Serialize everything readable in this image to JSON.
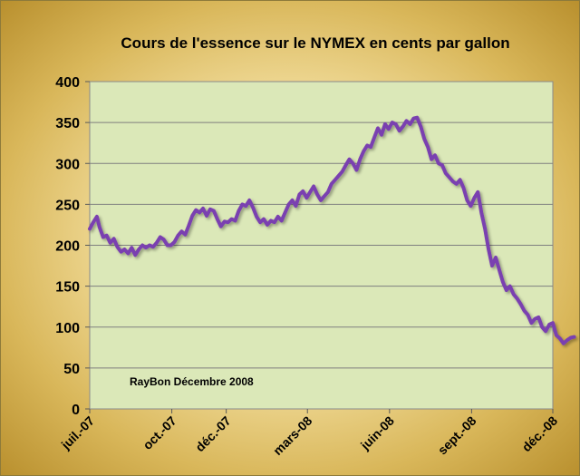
{
  "chart_data": {
    "type": "line",
    "title": "Cours de l'essence sur le NYMEX en cents par gallon",
    "annotation": "RayBon Décembre 2008",
    "xlabel": "",
    "ylabel": "",
    "ylim": [
      0,
      400
    ],
    "yticks": [
      0,
      50,
      100,
      150,
      200,
      250,
      300,
      350,
      400
    ],
    "xticks": [
      {
        "label": "juil.-07",
        "date": "2007-07-01"
      },
      {
        "label": "oct.-07",
        "date": "2007-10-01"
      },
      {
        "label": "déc.-07",
        "date": "2007-12-01"
      },
      {
        "label": "mars-08",
        "date": "2008-03-01"
      },
      {
        "label": "juin-08",
        "date": "2008-06-01"
      },
      {
        "label": "sept.-08",
        "date": "2008-09-01"
      },
      {
        "label": "déc.-08",
        "date": "2008-12-01"
      }
    ],
    "xlim": [
      "2007-07-01",
      "2008-12-01"
    ],
    "grid": true,
    "legend": "none",
    "colors": {
      "line": "#7a3fb0",
      "plot_bg": "#dbe8b8",
      "grid": "#7f7f7f",
      "axis": "#595959"
    },
    "series": [
      {
        "points": [
          [
            "2007-07-01",
            220
          ],
          [
            "2007-07-05",
            228
          ],
          [
            "2007-07-09",
            235
          ],
          [
            "2007-07-12",
            222
          ],
          [
            "2007-07-16",
            210
          ],
          [
            "2007-07-20",
            212
          ],
          [
            "2007-07-24",
            203
          ],
          [
            "2007-07-28",
            208
          ],
          [
            "2007-08-01",
            198
          ],
          [
            "2007-08-05",
            192
          ],
          [
            "2007-08-09",
            195
          ],
          [
            "2007-08-13",
            190
          ],
          [
            "2007-08-17",
            197
          ],
          [
            "2007-08-21",
            188
          ],
          [
            "2007-08-25",
            195
          ],
          [
            "2007-08-29",
            200
          ],
          [
            "2007-09-02",
            197
          ],
          [
            "2007-09-06",
            200
          ],
          [
            "2007-09-10",
            198
          ],
          [
            "2007-09-14",
            203
          ],
          [
            "2007-09-18",
            210
          ],
          [
            "2007-09-22",
            207
          ],
          [
            "2007-09-26",
            200
          ],
          [
            "2007-09-30",
            200
          ],
          [
            "2007-10-04",
            204
          ],
          [
            "2007-10-08",
            212
          ],
          [
            "2007-10-12",
            217
          ],
          [
            "2007-10-16",
            213
          ],
          [
            "2007-10-20",
            224
          ],
          [
            "2007-10-24",
            236
          ],
          [
            "2007-10-28",
            243
          ],
          [
            "2007-11-01",
            240
          ],
          [
            "2007-11-05",
            245
          ],
          [
            "2007-11-09",
            236
          ],
          [
            "2007-11-13",
            244
          ],
          [
            "2007-11-17",
            242
          ],
          [
            "2007-11-21",
            232
          ],
          [
            "2007-11-25",
            223
          ],
          [
            "2007-11-29",
            229
          ],
          [
            "2007-12-03",
            228
          ],
          [
            "2007-12-07",
            232
          ],
          [
            "2007-12-11",
            230
          ],
          [
            "2007-12-15",
            242
          ],
          [
            "2007-12-19",
            250
          ],
          [
            "2007-12-23",
            248
          ],
          [
            "2007-12-27",
            255
          ],
          [
            "2007-12-31",
            246
          ],
          [
            "2008-01-04",
            235
          ],
          [
            "2008-01-08",
            228
          ],
          [
            "2008-01-12",
            232
          ],
          [
            "2008-01-16",
            225
          ],
          [
            "2008-01-20",
            230
          ],
          [
            "2008-01-24",
            228
          ],
          [
            "2008-01-28",
            235
          ],
          [
            "2008-02-01",
            230
          ],
          [
            "2008-02-05",
            240
          ],
          [
            "2008-02-09",
            250
          ],
          [
            "2008-02-13",
            255
          ],
          [
            "2008-02-17",
            248
          ],
          [
            "2008-02-21",
            262
          ],
          [
            "2008-02-25",
            266
          ],
          [
            "2008-02-29",
            258
          ],
          [
            "2008-03-04",
            265
          ],
          [
            "2008-03-08",
            272
          ],
          [
            "2008-03-12",
            262
          ],
          [
            "2008-03-16",
            255
          ],
          [
            "2008-03-20",
            260
          ],
          [
            "2008-03-24",
            265
          ],
          [
            "2008-03-28",
            275
          ],
          [
            "2008-04-01",
            280
          ],
          [
            "2008-04-05",
            285
          ],
          [
            "2008-04-09",
            290
          ],
          [
            "2008-04-13",
            298
          ],
          [
            "2008-04-17",
            305
          ],
          [
            "2008-04-21",
            300
          ],
          [
            "2008-04-25",
            292
          ],
          [
            "2008-04-29",
            305
          ],
          [
            "2008-05-03",
            315
          ],
          [
            "2008-05-07",
            322
          ],
          [
            "2008-05-11",
            320
          ],
          [
            "2008-05-15",
            332
          ],
          [
            "2008-05-19",
            343
          ],
          [
            "2008-05-23",
            335
          ],
          [
            "2008-05-27",
            348
          ],
          [
            "2008-05-31",
            342
          ],
          [
            "2008-06-04",
            350
          ],
          [
            "2008-06-08",
            348
          ],
          [
            "2008-06-12",
            340
          ],
          [
            "2008-06-16",
            345
          ],
          [
            "2008-06-20",
            352
          ],
          [
            "2008-06-24",
            348
          ],
          [
            "2008-06-28",
            355
          ],
          [
            "2008-07-02",
            356
          ],
          [
            "2008-07-06",
            345
          ],
          [
            "2008-07-10",
            330
          ],
          [
            "2008-07-14",
            320
          ],
          [
            "2008-07-18",
            305
          ],
          [
            "2008-07-22",
            310
          ],
          [
            "2008-07-26",
            300
          ],
          [
            "2008-07-30",
            298
          ],
          [
            "2008-08-03",
            288
          ],
          [
            "2008-08-07",
            283
          ],
          [
            "2008-08-11",
            278
          ],
          [
            "2008-08-15",
            275
          ],
          [
            "2008-08-19",
            280
          ],
          [
            "2008-08-23",
            270
          ],
          [
            "2008-08-27",
            255
          ],
          [
            "2008-08-31",
            248
          ],
          [
            "2008-09-04",
            258
          ],
          [
            "2008-09-08",
            265
          ],
          [
            "2008-09-12",
            240
          ],
          [
            "2008-09-16",
            220
          ],
          [
            "2008-09-20",
            195
          ],
          [
            "2008-09-24",
            175
          ],
          [
            "2008-09-28",
            185
          ],
          [
            "2008-10-02",
            170
          ],
          [
            "2008-10-06",
            155
          ],
          [
            "2008-10-10",
            145
          ],
          [
            "2008-10-14",
            150
          ],
          [
            "2008-10-18",
            140
          ],
          [
            "2008-10-22",
            135
          ],
          [
            "2008-10-26",
            128
          ],
          [
            "2008-10-30",
            120
          ],
          [
            "2008-11-03",
            115
          ],
          [
            "2008-11-07",
            105
          ],
          [
            "2008-11-11",
            110
          ],
          [
            "2008-11-15",
            112
          ],
          [
            "2008-11-19",
            100
          ],
          [
            "2008-11-23",
            95
          ],
          [
            "2008-11-27",
            103
          ],
          [
            "2008-12-01",
            105
          ],
          [
            "2008-12-05",
            90
          ],
          [
            "2008-12-09",
            86
          ],
          [
            "2008-12-13",
            80
          ],
          [
            "2008-12-17",
            84
          ],
          [
            "2008-12-21",
            87
          ],
          [
            "2008-12-25",
            88
          ]
        ]
      }
    ]
  }
}
